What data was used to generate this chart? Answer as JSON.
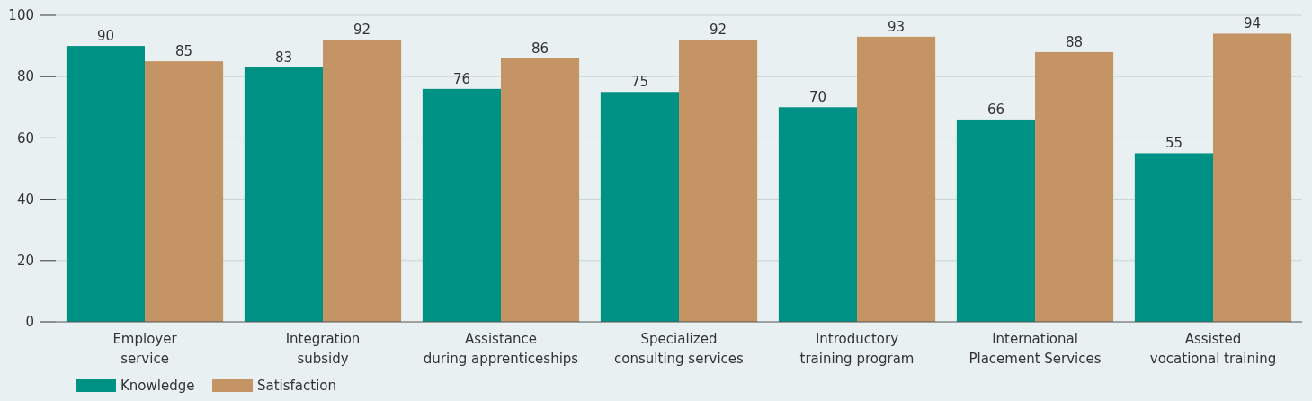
{
  "chart_data": {
    "type": "bar",
    "categories": [
      "Employer\nservice",
      "Integration\nsubsidy",
      "Assistance\nduring apprenticeships",
      "Specialized\nconsulting services",
      "Introductory\ntraining program",
      "International\nPlacement Services",
      "Assisted\nvocational training"
    ],
    "series": [
      {
        "name": "Knowledge",
        "color": "#009185",
        "values": [
          90,
          83,
          76,
          75,
          70,
          66,
          55
        ]
      },
      {
        "name": "Satisfaction",
        "color": "#c49464",
        "values": [
          85,
          92,
          86,
          92,
          93,
          88,
          94
        ]
      }
    ],
    "ylim": [
      0,
      100
    ],
    "yticks": [
      0,
      20,
      40,
      60,
      80,
      100
    ],
    "grid": "y",
    "legend": "bottom left",
    "data_labels": true
  }
}
